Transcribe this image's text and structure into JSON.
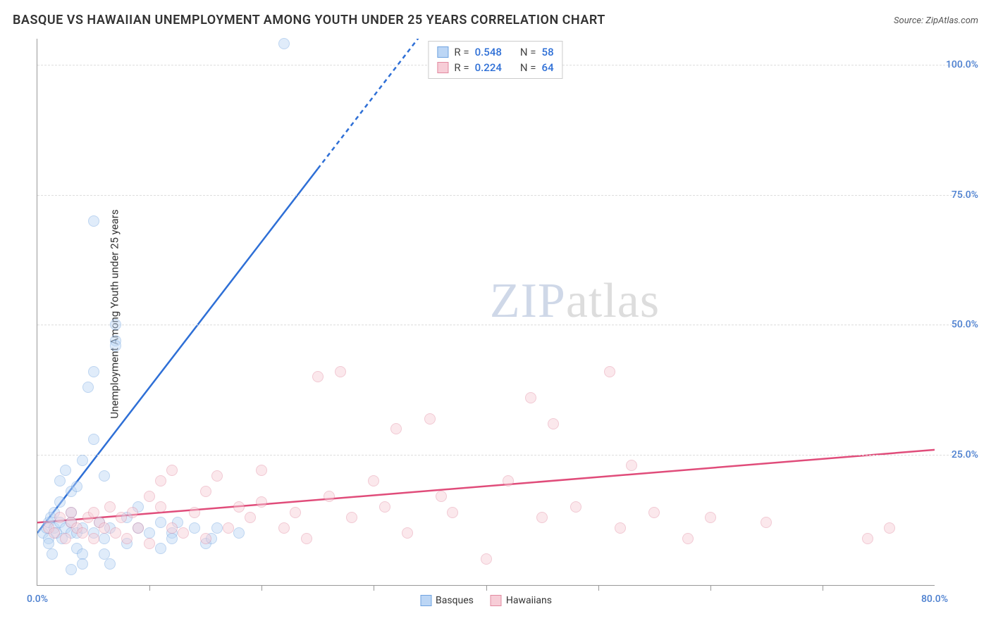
{
  "title": "BASQUE VS HAWAIIAN UNEMPLOYMENT AMONG YOUTH UNDER 25 YEARS CORRELATION CHART",
  "source": "Source: ZipAtlas.com",
  "ylabel": "Unemployment Among Youth under 25 years",
  "watermark_a": "ZIP",
  "watermark_b": "atlas",
  "chart": {
    "type": "scatter",
    "xlim": [
      0,
      80
    ],
    "ylim": [
      0,
      105
    ],
    "xtick_labels": [
      "0.0%",
      "80.0%"
    ],
    "xtick_positions": [
      0,
      80
    ],
    "xtick_minor": [
      10,
      20,
      30,
      40,
      50,
      60,
      70
    ],
    "ytick_labels": [
      "25.0%",
      "50.0%",
      "75.0%",
      "100.0%"
    ],
    "ytick_positions": [
      25,
      50,
      75,
      100
    ],
    "tick_color": "#4a7ecf",
    "grid_color": "#dddddd",
    "axis_color": "#999999",
    "background_color": "#ffffff",
    "marker_radius": 8,
    "marker_opacity": 0.45,
    "series": [
      {
        "name": "Basques",
        "color_fill": "#bcd6f5",
        "color_stroke": "#6fa3e0",
        "trend_color": "#2e6fd6",
        "trend": {
          "x1": 0,
          "y1": 10,
          "x2": 25,
          "y2": 80,
          "dash_from_x": 25,
          "dash_to_x": 35,
          "dash_to_y": 108
        },
        "R": "0.548",
        "N": "58",
        "points": [
          [
            0.5,
            10
          ],
          [
            0.8,
            11
          ],
          [
            1,
            9
          ],
          [
            1,
            12
          ],
          [
            1,
            8
          ],
          [
            1.2,
            13
          ],
          [
            1.3,
            6
          ],
          [
            1.5,
            11
          ],
          [
            1.5,
            14
          ],
          [
            1.7,
            10
          ],
          [
            2,
            12
          ],
          [
            2,
            16
          ],
          [
            2,
            20
          ],
          [
            2.2,
            9
          ],
          [
            2.5,
            11
          ],
          [
            2.5,
            22
          ],
          [
            3,
            10
          ],
          [
            3,
            12
          ],
          [
            3,
            14
          ],
          [
            3,
            18
          ],
          [
            3,
            3
          ],
          [
            3.5,
            7
          ],
          [
            3.5,
            10
          ],
          [
            3.5,
            19
          ],
          [
            4,
            11
          ],
          [
            4,
            6
          ],
          [
            4,
            4
          ],
          [
            4,
            24
          ],
          [
            4.5,
            38
          ],
          [
            5,
            10
          ],
          [
            5,
            41
          ],
          [
            5,
            28
          ],
          [
            5,
            70
          ],
          [
            5.5,
            12
          ],
          [
            6,
            6
          ],
          [
            6,
            9
          ],
          [
            6,
            21
          ],
          [
            6.5,
            11
          ],
          [
            6.5,
            4
          ],
          [
            7,
            47
          ],
          [
            7,
            46
          ],
          [
            7,
            50
          ],
          [
            8,
            13
          ],
          [
            8,
            8
          ],
          [
            9,
            11
          ],
          [
            9,
            15
          ],
          [
            10,
            10
          ],
          [
            11,
            12
          ],
          [
            11,
            7
          ],
          [
            12,
            10
          ],
          [
            12,
            9
          ],
          [
            12.5,
            12
          ],
          [
            14,
            11
          ],
          [
            15,
            8
          ],
          [
            15.5,
            9
          ],
          [
            16,
            11
          ],
          [
            18,
            10
          ],
          [
            22,
            104
          ]
        ]
      },
      {
        "name": "Hawaiians",
        "color_fill": "#f7cdd7",
        "color_stroke": "#e28aa0",
        "trend_color": "#e04c7a",
        "trend": {
          "x1": 0,
          "y1": 12,
          "x2": 80,
          "y2": 26
        },
        "R": "0.224",
        "N": "64",
        "points": [
          [
            1,
            11
          ],
          [
            1.5,
            10
          ],
          [
            2,
            13
          ],
          [
            2.5,
            9
          ],
          [
            3,
            12
          ],
          [
            3,
            14
          ],
          [
            3.5,
            11
          ],
          [
            4,
            10
          ],
          [
            4.5,
            13
          ],
          [
            5,
            9
          ],
          [
            5,
            14
          ],
          [
            5.5,
            12
          ],
          [
            6,
            11
          ],
          [
            6.5,
            15
          ],
          [
            7,
            10
          ],
          [
            7.5,
            13
          ],
          [
            8,
            9
          ],
          [
            8.5,
            14
          ],
          [
            9,
            11
          ],
          [
            10,
            8
          ],
          [
            10,
            17
          ],
          [
            11,
            15
          ],
          [
            11,
            20
          ],
          [
            12,
            11
          ],
          [
            12,
            22
          ],
          [
            13,
            10
          ],
          [
            14,
            14
          ],
          [
            15,
            18
          ],
          [
            15,
            9
          ],
          [
            16,
            21
          ],
          [
            17,
            11
          ],
          [
            18,
            15
          ],
          [
            19,
            13
          ],
          [
            20,
            22
          ],
          [
            20,
            16
          ],
          [
            22,
            11
          ],
          [
            23,
            14
          ],
          [
            24,
            9
          ],
          [
            25,
            40
          ],
          [
            26,
            17
          ],
          [
            27,
            41
          ],
          [
            28,
            13
          ],
          [
            30,
            20
          ],
          [
            31,
            15
          ],
          [
            32,
            30
          ],
          [
            33,
            10
          ],
          [
            35,
            32
          ],
          [
            36,
            17
          ],
          [
            37,
            14
          ],
          [
            40,
            5
          ],
          [
            42,
            20
          ],
          [
            44,
            36
          ],
          [
            45,
            13
          ],
          [
            46,
            31
          ],
          [
            48,
            15
          ],
          [
            51,
            41
          ],
          [
            52,
            11
          ],
          [
            53,
            23
          ],
          [
            55,
            14
          ],
          [
            58,
            9
          ],
          [
            60,
            13
          ],
          [
            65,
            12
          ],
          [
            74,
            9
          ],
          [
            76,
            11
          ]
        ]
      }
    ]
  },
  "legend_top": {
    "r_label": "R =",
    "n_label": "N =",
    "value_color": "#2e6fd6"
  },
  "legend_bottom": {
    "items": [
      "Basques",
      "Hawaiians"
    ]
  }
}
